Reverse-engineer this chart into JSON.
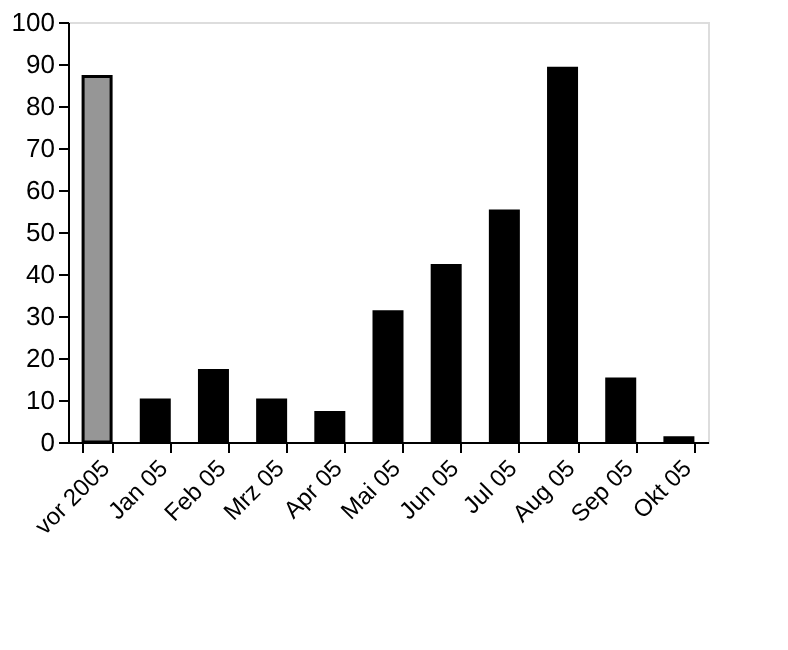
{
  "chart_data": {
    "type": "bar",
    "categories": [
      "vor 2005",
      "Jan 05",
      "Feb 05",
      "Mrz 05",
      "Apr 05",
      "Mai 05",
      "Jun 05",
      "Jul 05",
      "Aug 05",
      "Sep 05",
      "Okt 05"
    ],
    "values": [
      87,
      10,
      17,
      10,
      7,
      31,
      42,
      55,
      89,
      15,
      1
    ],
    "colors": [
      "#969696",
      "#000000",
      "#000000",
      "#000000",
      "#000000",
      "#000000",
      "#000000",
      "#000000",
      "#000000",
      "#000000",
      "#000000"
    ],
    "ylim": [
      0,
      100
    ],
    "yticks": [
      0,
      10,
      20,
      30,
      40,
      50,
      60,
      70,
      80,
      90,
      100
    ],
    "grid": false
  }
}
